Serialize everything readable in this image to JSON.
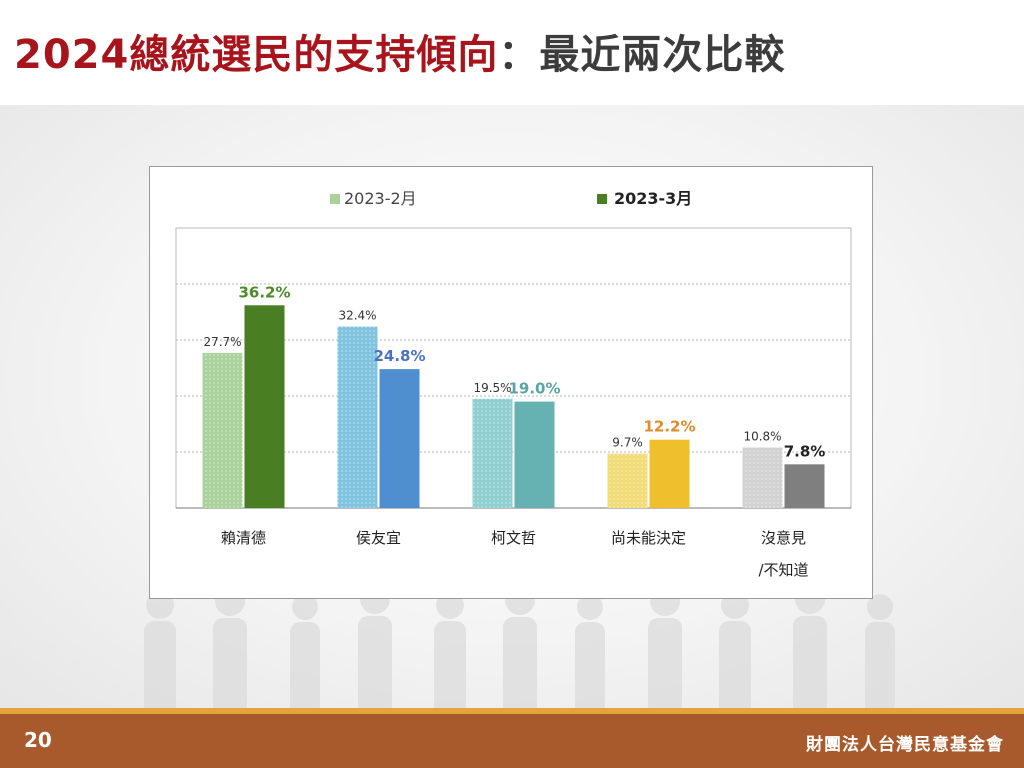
{
  "slide": {
    "title_main": "2024總統選民的支持傾向",
    "title_sub": "：最近兩次比較",
    "page_number": "20",
    "organization": "財團法人台灣民意基金會"
  },
  "chart_data": {
    "type": "bar",
    "categories": [
      "賴清德",
      "侯友宜",
      "柯文哲",
      "尚未能決定",
      "沒意見/不知道"
    ],
    "category_lines": [
      [
        "賴清德"
      ],
      [
        "侯友宜"
      ],
      [
        "柯文哲"
      ],
      [
        "尚未能決定"
      ],
      [
        "沒意見",
        "/不知道"
      ]
    ],
    "series": [
      {
        "name": "2023-2月",
        "values": [
          27.7,
          32.4,
          19.5,
          9.7,
          10.8
        ],
        "labels": [
          "27.7%",
          "32.4%",
          "19.5%",
          "9.7%",
          "10.8%"
        ],
        "colors": [
          "#a9d39b",
          "#7fc3df",
          "#90cfd0",
          "#f2dc78",
          "#d2d2d2"
        ],
        "label_color": "#333333"
      },
      {
        "name": "2023-3月",
        "values": [
          36.2,
          24.8,
          19.0,
          12.2,
          7.8
        ],
        "labels": [
          "36.2%",
          "24.8%",
          "19.0%",
          "12.2%",
          "7.8%"
        ],
        "colors": [
          "#4a7e22",
          "#4f8fd0",
          "#66b2b2",
          "#efbf2d",
          "#7f7f7f"
        ],
        "label_colors": [
          "#4a8b2a",
          "#4a72c4",
          "#5aa5a5",
          "#df8c2c",
          "#222222"
        ]
      }
    ],
    "legend": [
      "2023-2月",
      "2023-3月"
    ],
    "legend_position": "top",
    "ylim": [
      0,
      50
    ],
    "grid": true
  }
}
